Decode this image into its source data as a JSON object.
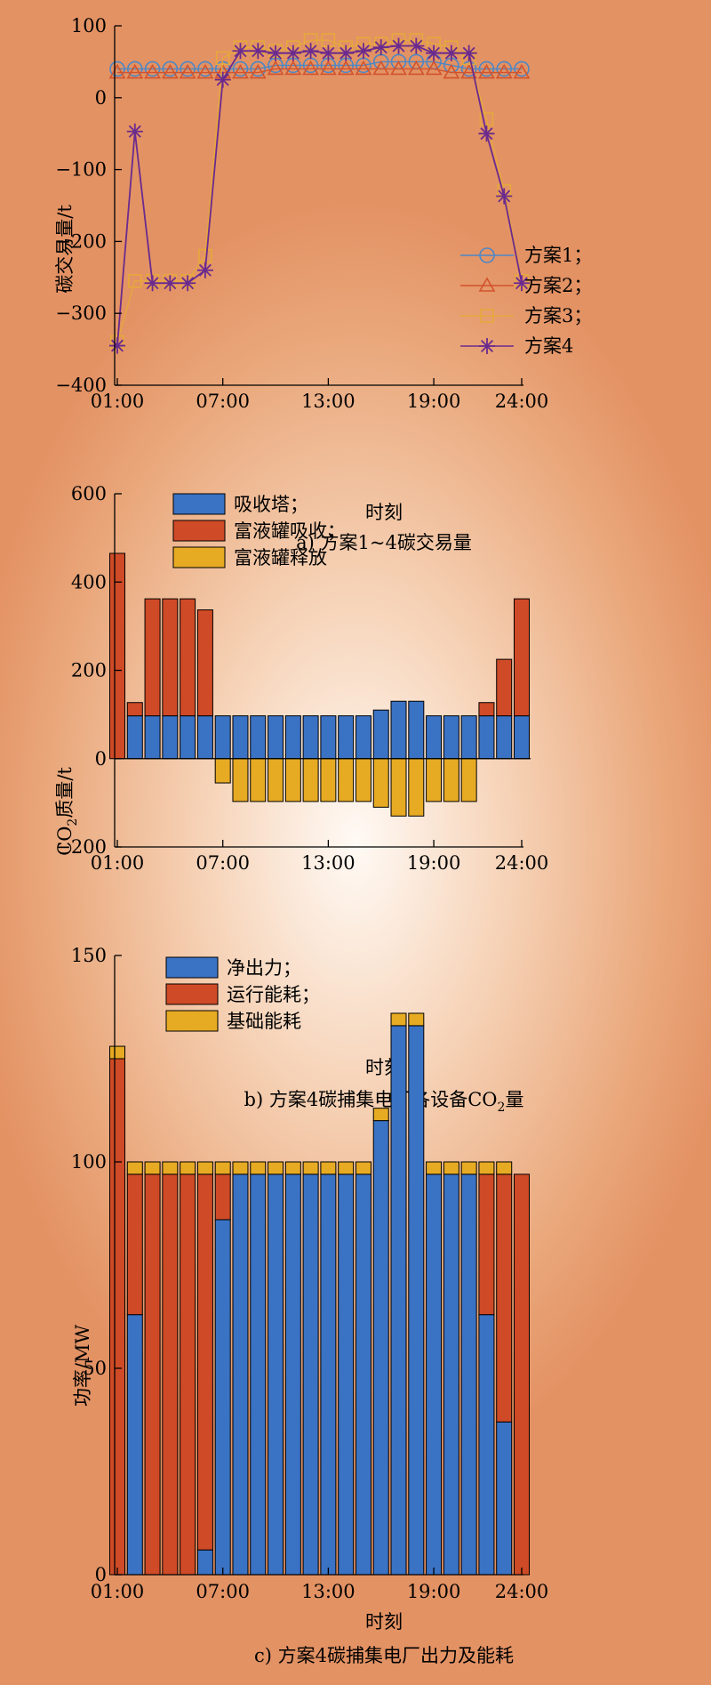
{
  "colors": {
    "blue": "#3a72c4",
    "red": "#cf4a26",
    "gold": "#e6aa23",
    "purple": "#6a2a8e",
    "line_blue": "#4c87c6",
    "line_red": "#d2532c",
    "line_gold": "#e6a83c"
  },
  "chart_data": [
    {
      "type": "line",
      "caption": "a) 方案1~4碳交易量",
      "xlabel": "时刻",
      "ylabel": "碳交易量/t",
      "x_tick_labels": [
        "01:00",
        "07:00",
        "13:00",
        "19:00",
        "24:00"
      ],
      "y_ticks": [
        100,
        0,
        -100,
        -200,
        -300,
        -400
      ],
      "y_tick_labels": [
        "100",
        "0",
        "−100",
        "−200",
        "−300",
        "−400"
      ],
      "ylim": [
        -400,
        100
      ],
      "xlim": [
        1,
        24
      ],
      "legend_position": "lower-right",
      "x": [
        1,
        2,
        3,
        4,
        5,
        6,
        7,
        8,
        9,
        10,
        11,
        12,
        13,
        14,
        15,
        16,
        17,
        18,
        19,
        20,
        21,
        22,
        23,
        24
      ],
      "series": [
        {
          "name": "方案1；",
          "marker": "circle",
          "color_key": "line_blue",
          "values": [
            40,
            40,
            40,
            40,
            40,
            40,
            40,
            40,
            40,
            45,
            45,
            45,
            45,
            45,
            45,
            50,
            50,
            50,
            50,
            45,
            40,
            40,
            40,
            40
          ]
        },
        {
          "name": "方案2；",
          "marker": "triangle",
          "color_key": "line_red",
          "values": [
            35,
            35,
            35,
            35,
            35,
            35,
            35,
            35,
            35,
            40,
            40,
            40,
            40,
            40,
            40,
            40,
            40,
            40,
            40,
            35,
            35,
            35,
            35,
            35
          ]
        },
        {
          "name": "方案3；",
          "marker": "square",
          "color_key": "line_gold",
          "values": [
            -340,
            -255,
            -255,
            -255,
            -255,
            -220,
            55,
            70,
            70,
            65,
            70,
            80,
            80,
            70,
            75,
            75,
            80,
            80,
            75,
            70,
            55,
            -30,
            -130,
            -255
          ]
        },
        {
          "name": "方案4",
          "marker": "star",
          "color_key": "purple",
          "values": [
            -345,
            -47,
            -258,
            -258,
            -258,
            -240,
            25,
            65,
            65,
            62,
            62,
            65,
            62,
            62,
            65,
            70,
            72,
            72,
            62,
            62,
            62,
            -50,
            -137,
            -258
          ]
        }
      ]
    },
    {
      "type": "bar",
      "stacked": true,
      "caption_main": "b) 方案4碳捕集电厂各设备CO",
      "caption_sub": "2",
      "caption_tail": "量",
      "xlabel": "时刻",
      "ylabel_main": "CO",
      "ylabel_sub": "2",
      "ylabel_tail": "质量/t",
      "x_tick_labels": [
        "01:00",
        "07:00",
        "13:00",
        "19:00",
        "24:00"
      ],
      "y_ticks": [
        600,
        400,
        200,
        0,
        -200
      ],
      "y_tick_labels": [
        "600",
        "400",
        "200",
        "0",
        "−200"
      ],
      "ylim": [
        -200,
        600
      ],
      "legend_position": "top-left",
      "x": [
        1,
        2,
        3,
        4,
        5,
        6,
        7,
        8,
        9,
        10,
        11,
        12,
        13,
        14,
        15,
        16,
        17,
        18,
        19,
        20,
        21,
        22,
        23,
        24
      ],
      "series": [
        {
          "name": "吸收塔；",
          "color_key": "blue",
          "values": [
            0,
            97,
            97,
            97,
            97,
            97,
            97,
            97,
            97,
            97,
            97,
            97,
            97,
            97,
            97,
            110,
            130,
            130,
            97,
            97,
            97,
            97,
            97,
            97
          ]
        },
        {
          "name": "富液罐吸收；",
          "color_key": "red",
          "values": [
            465,
            30,
            265,
            265,
            265,
            240,
            0,
            0,
            0,
            0,
            0,
            0,
            0,
            0,
            0,
            0,
            0,
            0,
            0,
            0,
            0,
            30,
            128,
            265
          ]
        },
        {
          "name": "富液罐释放",
          "color_key": "gold",
          "values": [
            0,
            0,
            0,
            0,
            0,
            0,
            -55,
            -97,
            -97,
            -97,
            -97,
            -97,
            -97,
            -97,
            -97,
            -110,
            -130,
            -130,
            -97,
            -97,
            -97,
            0,
            0,
            0
          ]
        }
      ]
    },
    {
      "type": "bar",
      "stacked": true,
      "caption": "c) 方案4碳捕集电厂出力及能耗",
      "xlabel": "时刻",
      "ylabel": "功率/MW",
      "x_tick_labels": [
        "01:00",
        "07:00",
        "13:00",
        "19:00",
        "24:00"
      ],
      "y_ticks": [
        150,
        100,
        50,
        0
      ],
      "y_tick_labels": [
        "150",
        "100",
        "50",
        "0"
      ],
      "ylim": [
        0,
        150
      ],
      "legend_position": "top-left",
      "x": [
        1,
        2,
        3,
        4,
        5,
        6,
        7,
        8,
        9,
        10,
        11,
        12,
        13,
        14,
        15,
        16,
        17,
        18,
        19,
        20,
        21,
        22,
        23,
        24
      ],
      "series": [
        {
          "name": "净出力；",
          "color_key": "blue",
          "values": [
            0,
            63,
            0,
            0,
            0,
            6,
            86,
            97,
            97,
            97,
            97,
            97,
            97,
            97,
            97,
            110,
            133,
            133,
            97,
            97,
            97,
            63,
            37,
            0
          ]
        },
        {
          "name": "运行能耗；",
          "color_key": "red",
          "values": [
            125,
            34,
            97,
            97,
            97,
            91,
            11,
            0,
            0,
            0,
            0,
            0,
            0,
            0,
            0,
            0,
            0,
            0,
            0,
            0,
            0,
            34,
            60,
            97
          ]
        },
        {
          "name": "基础能耗",
          "color_key": "gold",
          "values": [
            3,
            3,
            3,
            3,
            3,
            3,
            3,
            3,
            3,
            3,
            3,
            3,
            3,
            3,
            3,
            3,
            3,
            3,
            3,
            3,
            3,
            3,
            3,
            0
          ]
        }
      ]
    }
  ]
}
